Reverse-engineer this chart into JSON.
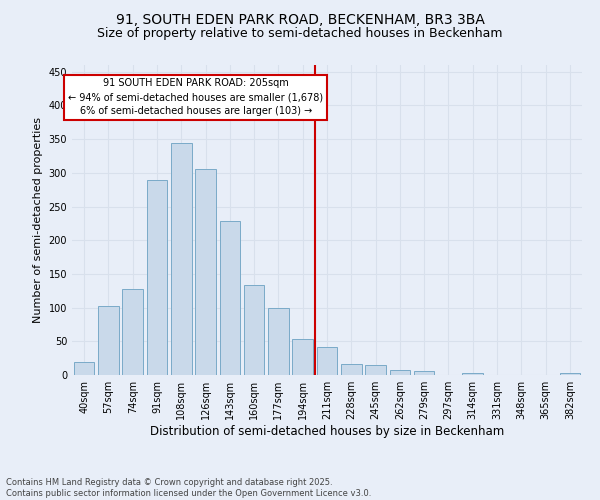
{
  "title": "91, SOUTH EDEN PARK ROAD, BECKENHAM, BR3 3BA",
  "subtitle": "Size of property relative to semi-detached houses in Beckenham",
  "xlabel": "Distribution of semi-detached houses by size in Beckenham",
  "ylabel": "Number of semi-detached properties",
  "bar_labels": [
    "40sqm",
    "57sqm",
    "74sqm",
    "91sqm",
    "108sqm",
    "126sqm",
    "143sqm",
    "160sqm",
    "177sqm",
    "194sqm",
    "211sqm",
    "228sqm",
    "245sqm",
    "262sqm",
    "279sqm",
    "297sqm",
    "314sqm",
    "331sqm",
    "348sqm",
    "365sqm",
    "382sqm"
  ],
  "bar_values": [
    20,
    103,
    128,
    290,
    345,
    305,
    228,
    133,
    100,
    53,
    42,
    16,
    15,
    8,
    6,
    0,
    3,
    0,
    0,
    0,
    3
  ],
  "bar_color": "#c9d9ea",
  "bar_edge_color": "#7aaac8",
  "annotation_text": "91 SOUTH EDEN PARK ROAD: 205sqm\n← 94% of semi-detached houses are smaller (1,678)\n6% of semi-detached houses are larger (103) →",
  "annotation_box_color": "#ffffff",
  "annotation_box_edge": "#cc0000",
  "vline_color": "#cc0000",
  "grid_color": "#d8e0ec",
  "background_color": "#e8eef8",
  "ylim": [
    0,
    460
  ],
  "yticks": [
    0,
    50,
    100,
    150,
    200,
    250,
    300,
    350,
    400,
    450
  ],
  "footer": "Contains HM Land Registry data © Crown copyright and database right 2025.\nContains public sector information licensed under the Open Government Licence v3.0.",
  "title_fontsize": 10,
  "subtitle_fontsize": 9,
  "xlabel_fontsize": 8.5,
  "ylabel_fontsize": 8,
  "annot_fontsize": 7,
  "tick_fontsize": 7,
  "footer_fontsize": 6
}
